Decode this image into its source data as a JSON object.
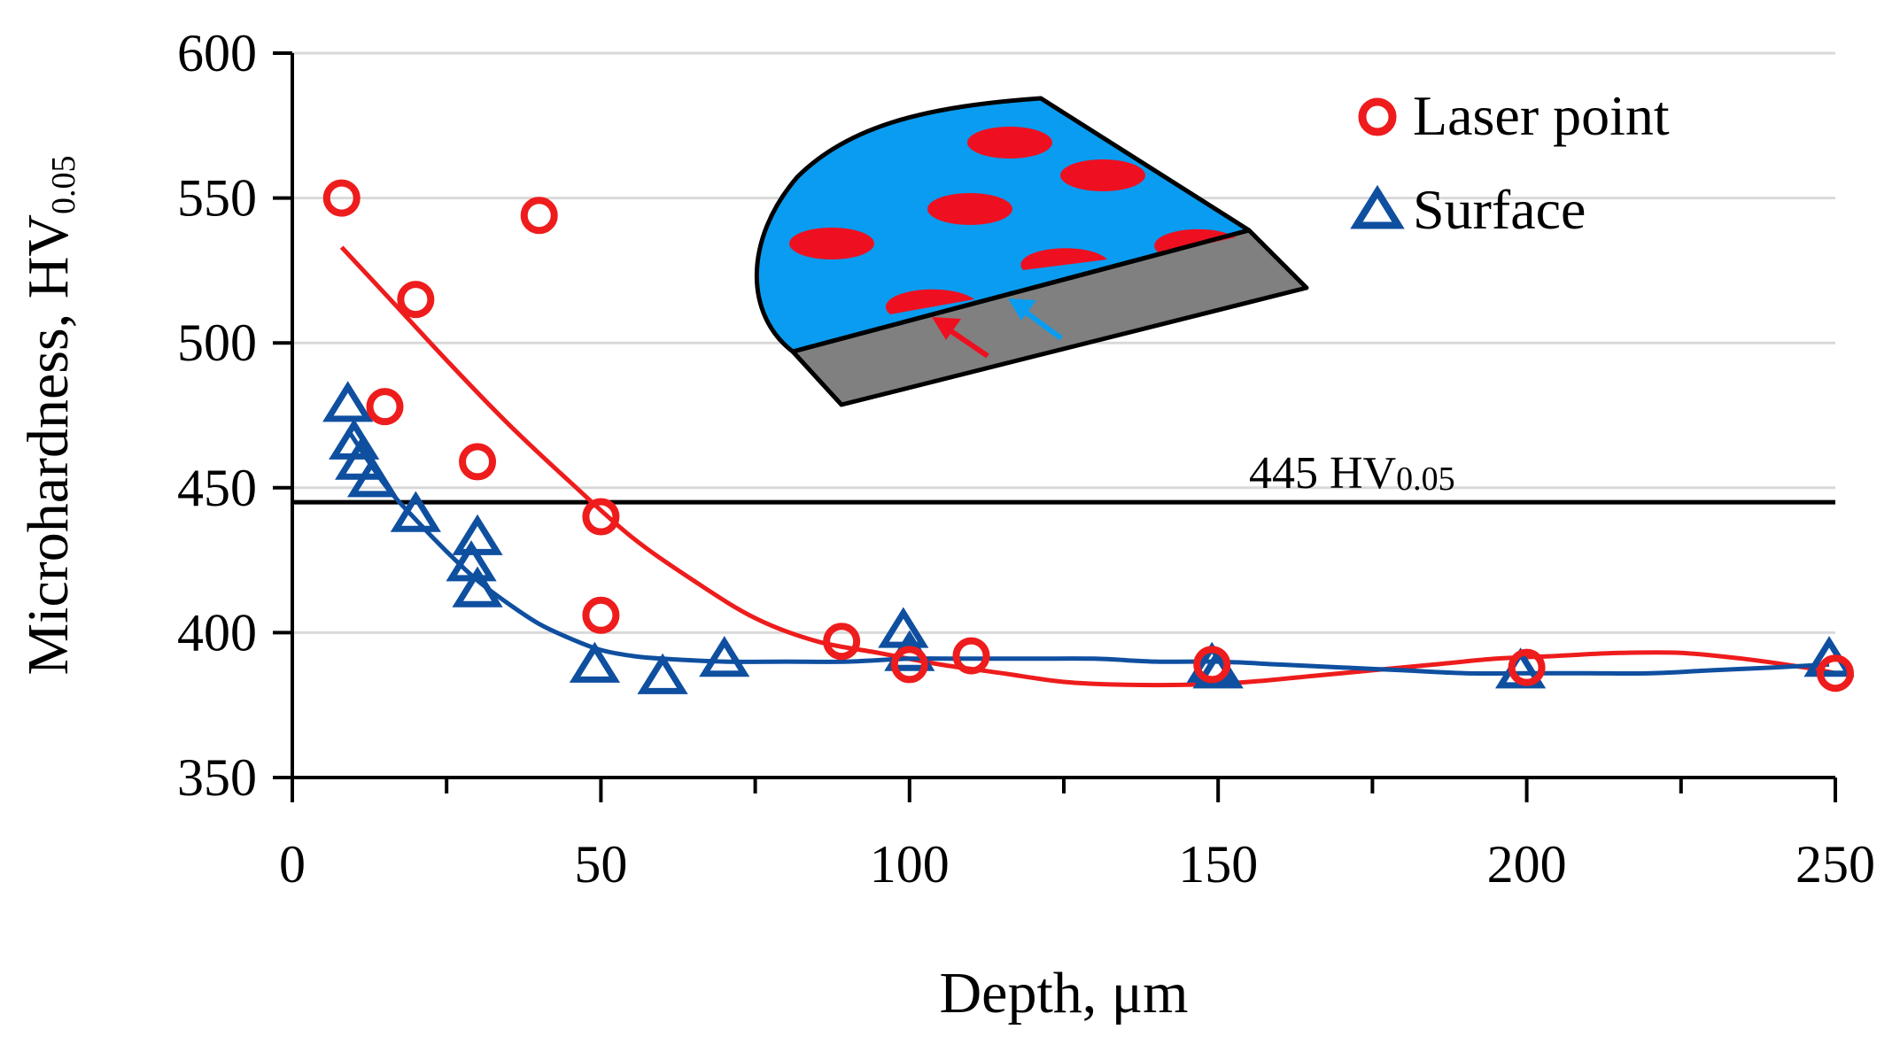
{
  "chart_data": {
    "type": "scatter",
    "xlabel": "Depth, μm",
    "ylabel_main": "Microhardness, HV",
    "ylabel_sub": "0.05",
    "xlim": [
      0,
      250
    ],
    "ylim": [
      350,
      600
    ],
    "x_ticks": [
      0,
      50,
      100,
      150,
      200,
      250
    ],
    "x_minor_ticks": [
      25,
      75,
      125,
      175,
      225
    ],
    "y_ticks": [
      350,
      400,
      450,
      500,
      550,
      600
    ],
    "grid": "horizontal",
    "legend_position": "top-right",
    "reference_line": {
      "value": 445,
      "label_main": "445 HV",
      "label_sub": "0.05"
    },
    "series": [
      {
        "name": "Laser point",
        "marker": "circle",
        "color": "#ee1c1c",
        "points": [
          [
            8,
            550
          ],
          [
            15,
            478
          ],
          [
            20,
            515
          ],
          [
            30,
            459
          ],
          [
            40,
            544
          ],
          [
            50,
            440
          ],
          [
            50,
            406
          ],
          [
            89,
            397
          ],
          [
            100,
            389
          ],
          [
            110,
            392
          ],
          [
            149,
            389
          ],
          [
            200,
            388
          ],
          [
            250,
            386
          ]
        ],
        "fit": [
          [
            8,
            533
          ],
          [
            15,
            517
          ],
          [
            25,
            494
          ],
          [
            35,
            472
          ],
          [
            45,
            452
          ],
          [
            55,
            433
          ],
          [
            65,
            418
          ],
          [
            75,
            405
          ],
          [
            85,
            397
          ],
          [
            95,
            393
          ],
          [
            105,
            389
          ],
          [
            115,
            386
          ],
          [
            125,
            383
          ],
          [
            135,
            382
          ],
          [
            145,
            382
          ],
          [
            155,
            383
          ],
          [
            165,
            385
          ],
          [
            175,
            387
          ],
          [
            185,
            389
          ],
          [
            195,
            391
          ],
          [
            205,
            392
          ],
          [
            215,
            393
          ],
          [
            225,
            393
          ],
          [
            235,
            391
          ],
          [
            245,
            388
          ],
          [
            250,
            386
          ]
        ]
      },
      {
        "name": "Surface",
        "marker": "triangle",
        "color": "#0f4fa0",
        "points": [
          [
            9,
            478
          ],
          [
            10,
            465
          ],
          [
            11,
            458
          ],
          [
            13,
            452
          ],
          [
            20,
            440
          ],
          [
            29,
            423
          ],
          [
            30,
            432
          ],
          [
            30,
            414
          ],
          [
            49,
            388
          ],
          [
            60,
            384
          ],
          [
            70,
            390
          ],
          [
            99,
            400
          ],
          [
            100,
            392
          ],
          [
            149,
            388
          ],
          [
            150,
            386
          ],
          [
            199,
            386
          ],
          [
            249,
            390
          ]
        ],
        "fit": [
          [
            9,
            470
          ],
          [
            15,
            451
          ],
          [
            20,
            439
          ],
          [
            25,
            428
          ],
          [
            30,
            418
          ],
          [
            35,
            410
          ],
          [
            40,
            403
          ],
          [
            45,
            398
          ],
          [
            50,
            394
          ],
          [
            55,
            392
          ],
          [
            60,
            391
          ],
          [
            70,
            390
          ],
          [
            80,
            390
          ],
          [
            90,
            390
          ],
          [
            100,
            391
          ],
          [
            110,
            391
          ],
          [
            120,
            391
          ],
          [
            130,
            391
          ],
          [
            140,
            390
          ],
          [
            150,
            390
          ],
          [
            160,
            389
          ],
          [
            170,
            388
          ],
          [
            180,
            387
          ],
          [
            190,
            386
          ],
          [
            200,
            386
          ],
          [
            210,
            386
          ],
          [
            220,
            386
          ],
          [
            230,
            387
          ],
          [
            240,
            388
          ],
          [
            249,
            389
          ]
        ]
      }
    ]
  }
}
